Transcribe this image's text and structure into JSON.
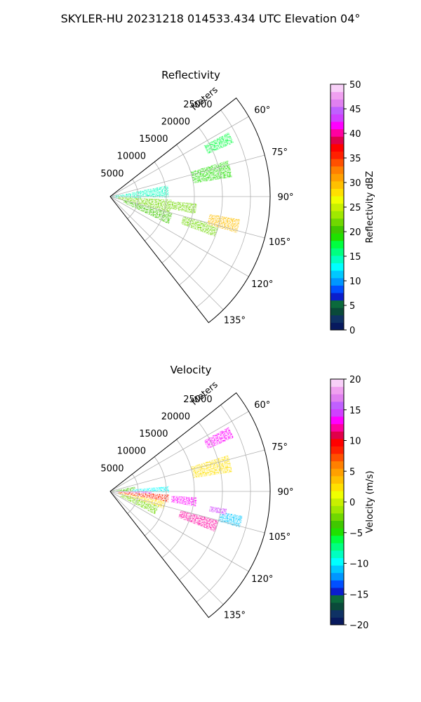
{
  "figure_title": "SKYLER-HU  20231218  014533.434 UTC Elevation 04°",
  "chart_data": [
    {
      "type": "heatmap",
      "subtype": "radar-ppi-sector",
      "title": "Reflectivity",
      "range_axis_label": "Meters",
      "range_ticks": [
        5000,
        10000,
        15000,
        20000,
        25000
      ],
      "range_tick_labels": [
        "5000",
        "10000",
        "15000",
        "20000",
        "25000"
      ],
      "range_max": 28500,
      "azimuth_range_deg": [
        52,
        142
      ],
      "azimuth_ticks": [
        60,
        75,
        90,
        105,
        120,
        135
      ],
      "azimuth_tick_labels": [
        "60°",
        "75°",
        "90°",
        "105°",
        "120°",
        "135°"
      ],
      "grid": true,
      "colorbar": {
        "label": "Reflectivity dBZ",
        "min": 0,
        "max": 50,
        "ticks": [
          0,
          5,
          10,
          15,
          20,
          25,
          30,
          35,
          40,
          45,
          50
        ],
        "tick_labels": [
          "0",
          "5",
          "10",
          "15",
          "20",
          "25",
          "30",
          "35",
          "40",
          "45",
          "50"
        ],
        "colors": [
          "#081a5e",
          "#0f3264",
          "#0a4a3a",
          "#0b6a3c",
          "#0a1ecc",
          "#0050ff",
          "#0096ff",
          "#00c8ff",
          "#00ffff",
          "#00ffc0",
          "#00ff80",
          "#00ff40",
          "#20e000",
          "#40c800",
          "#70d800",
          "#a0e800",
          "#c8f000",
          "#f0ff00",
          "#ffe000",
          "#ffc000",
          "#ffa000",
          "#ff8000",
          "#ff5000",
          "#ff2000",
          "#ff0000",
          "#e0004a",
          "#ff00a0",
          "#ff00ff",
          "#d040ff",
          "#c060ff",
          "#e080f0",
          "#f0a0f0",
          "#f8d0f8"
        ]
      },
      "echo_regions": [
        {
          "az_deg": 92,
          "r_m": [
            200,
            5500
          ],
          "az_width_deg": 24,
          "dbz": 15
        },
        {
          "az_deg": 85,
          "r_m": [
            4000,
            10500
          ],
          "az_width_deg": 12,
          "dbz": 15
        },
        {
          "az_deg": 100,
          "r_m": [
            1500,
            11000
          ],
          "az_width_deg": 14,
          "dbz": 22
        },
        {
          "az_deg": 110,
          "r_m": [
            2500,
            11500
          ],
          "az_width_deg": 10,
          "dbz": 20
        },
        {
          "az_deg": 98,
          "r_m": [
            11000,
            15500
          ],
          "az_width_deg": 7,
          "dbz": 22
        },
        {
          "az_deg": 108,
          "r_m": [
            13500,
            20000
          ],
          "az_width_deg": 6,
          "dbz": 22
        },
        {
          "az_deg": 103,
          "r_m": [
            18000,
            23500
          ],
          "az_width_deg": 6,
          "dbz": 30
        },
        {
          "az_deg": 77,
          "r_m": [
            15000,
            22000
          ],
          "az_width_deg": 8,
          "dbz": 19
        },
        {
          "az_deg": 64,
          "r_m": [
            19000,
            24000
          ],
          "az_width_deg": 5,
          "dbz": 18
        }
      ]
    },
    {
      "type": "heatmap",
      "subtype": "radar-ppi-sector",
      "title": "Velocity",
      "range_axis_label": "Meters",
      "range_ticks": [
        5000,
        10000,
        15000,
        20000,
        25000
      ],
      "range_tick_labels": [
        "5000",
        "10000",
        "15000",
        "20000",
        "25000"
      ],
      "range_max": 28500,
      "azimuth_range_deg": [
        52,
        142
      ],
      "azimuth_ticks": [
        60,
        75,
        90,
        105,
        120,
        135
      ],
      "azimuth_tick_labels": [
        "60°",
        "75°",
        "90°",
        "105°",
        "120°",
        "135°"
      ],
      "grid": true,
      "colorbar": {
        "label": "Velocity (m/s)",
        "min": -20,
        "max": 20,
        "ticks": [
          -20,
          -15,
          -10,
          -5,
          0,
          5,
          10,
          15,
          20
        ],
        "tick_labels": [
          "−20",
          "−15",
          "−10",
          "−5",
          "0",
          "5",
          "10",
          "15",
          "20"
        ],
        "colors": [
          "#081a5e",
          "#0f3264",
          "#0a4a3a",
          "#0b6a3c",
          "#0a1ecc",
          "#0050ff",
          "#0096ff",
          "#00c8ff",
          "#00ffff",
          "#00ffc0",
          "#00ff80",
          "#00ff40",
          "#20e000",
          "#40c800",
          "#70d800",
          "#a0e800",
          "#c8f000",
          "#f0ff00",
          "#ffe000",
          "#ffc000",
          "#ffa000",
          "#ff8000",
          "#ff5000",
          "#ff2000",
          "#ff0000",
          "#e0004a",
          "#ff00a0",
          "#ff00ff",
          "#d040ff",
          "#c060ff",
          "#e080f0",
          "#f0a0f0",
          "#f8d0f8"
        ]
      },
      "echo_regions": [
        {
          "az_deg": 86,
          "r_m": [
            500,
            4500
          ],
          "az_width_deg": 14,
          "ms": -4
        },
        {
          "az_deg": 88,
          "r_m": [
            4000,
            10500
          ],
          "az_width_deg": 6,
          "ms": -10
        },
        {
          "az_deg": 93,
          "r_m": [
            1000,
            7500
          ],
          "az_width_deg": 6,
          "ms": 15
        },
        {
          "az_deg": 97,
          "r_m": [
            1500,
            10500
          ],
          "az_width_deg": 8,
          "ms": 9
        },
        {
          "az_deg": 104,
          "r_m": [
            1500,
            10000
          ],
          "az_width_deg": 8,
          "ms": 2
        },
        {
          "az_deg": 112,
          "r_m": [
            2000,
            9000
          ],
          "az_width_deg": 10,
          "ms": -3
        },
        {
          "az_deg": 97,
          "r_m": [
            11000,
            15500
          ],
          "az_width_deg": 6,
          "ms": 13
        },
        {
          "az_deg": 108,
          "r_m": [
            13000,
            20000
          ],
          "az_width_deg": 6,
          "ms": 12
        },
        {
          "az_deg": 103,
          "r_m": [
            20000,
            24000
          ],
          "az_width_deg": 5,
          "ms": -11
        },
        {
          "az_deg": 100,
          "r_m": [
            18000,
            21000
          ],
          "az_width_deg": 3,
          "ms": 15
        },
        {
          "az_deg": 77,
          "r_m": [
            15000,
            22000
          ],
          "az_width_deg": 8,
          "ms": 2
        },
        {
          "az_deg": 64,
          "r_m": [
            19000,
            24000
          ],
          "az_width_deg": 5,
          "ms": 13
        }
      ]
    }
  ]
}
